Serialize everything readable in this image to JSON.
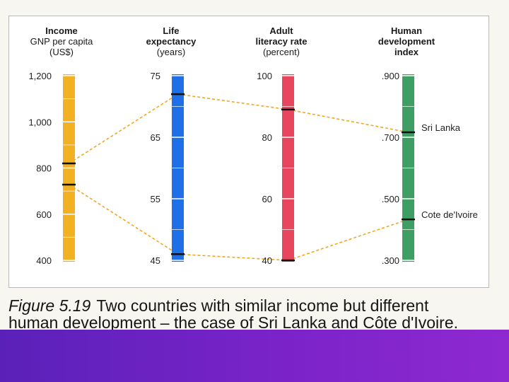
{
  "chart_data": {
    "type": "parallel-axes",
    "title": "",
    "axes": [
      {
        "title": "Income",
        "subtitle_lines": [
          "GNP per capita",
          "(US$)"
        ],
        "min": 400,
        "max": 1200,
        "ticks": [
          "1,200",
          "1,000",
          "800",
          "600",
          "400"
        ],
        "tick_values": [
          1200,
          1000,
          800,
          600,
          400
        ],
        "color": "#f2b123"
      },
      {
        "title": "Life",
        "subtitle_lines": [
          "expectancy",
          "(years)"
        ],
        "min": 45,
        "max": 75,
        "ticks": [
          "75",
          "65",
          "55",
          "45"
        ],
        "tick_values": [
          75,
          65,
          55,
          45
        ],
        "color": "#1f6fe8"
      },
      {
        "title": "Adult",
        "subtitle_lines": [
          "literacy rate",
          "(percent)"
        ],
        "min": 40,
        "max": 100,
        "ticks": [
          "100",
          "80",
          "60",
          "40"
        ],
        "tick_values": [
          100,
          80,
          60,
          40
        ],
        "color": "#e8465e"
      },
      {
        "title": "Human",
        "subtitle_lines": [
          "development",
          "index"
        ],
        "min": 0.3,
        "max": 0.9,
        "ticks": [
          ".900",
          ".700",
          ".500",
          ".300"
        ],
        "tick_values": [
          0.9,
          0.7,
          0.5,
          0.3
        ],
        "color": "#3f9e63"
      }
    ],
    "series": [
      {
        "name": "Sri Lanka",
        "values": [
          820,
          72,
          89,
          0.716
        ]
      },
      {
        "name": "Cote de'Ivoire",
        "values": [
          728,
          46,
          40,
          0.433
        ]
      }
    ],
    "line_color": "#f0a822",
    "marker_color": "#111111"
  },
  "caption": {
    "figure_number": "Figure 5.19",
    "text_line1": "Two countries with similar income but different",
    "text_line2": "human development – the case of Sri Lanka and Côte d'Ivoire."
  }
}
